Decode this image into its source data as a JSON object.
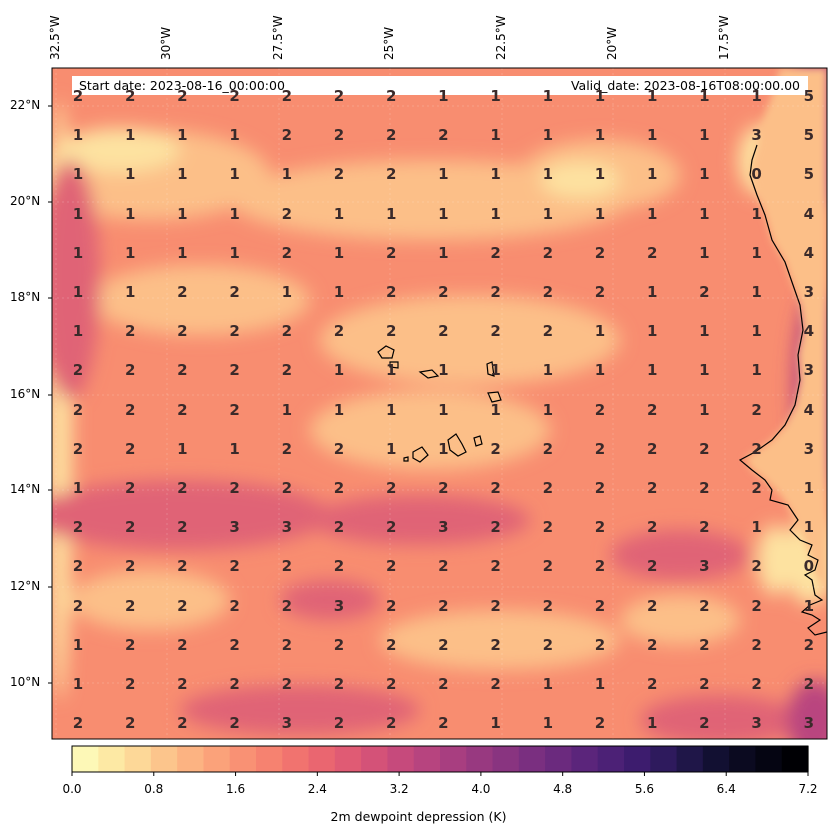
{
  "header": {
    "start_date": "Start date: 2023-08-16_00:00:00",
    "valid_date": "Valid_date: 2023-08-16T08:00:00.00"
  },
  "axes": {
    "lon_labels": [
      "32.5°W",
      "30°W",
      "27.5°W",
      "25°W",
      "22.5°W",
      "20°W",
      "17.5°W"
    ],
    "lat_labels": [
      "22°N",
      "20°N",
      "18°N",
      "16°N",
      "14°N",
      "12°N",
      "10°N"
    ]
  },
  "grid_values": [
    [
      "2",
      "2",
      "2",
      "2",
      "2",
      "2",
      "2",
      "1",
      "1",
      "1",
      "1",
      "1",
      "1",
      "1",
      "5"
    ],
    [
      "1",
      "1",
      "1",
      "1",
      "2",
      "2",
      "2",
      "2",
      "1",
      "1",
      "1",
      "1",
      "1",
      "3",
      "5"
    ],
    [
      "1",
      "1",
      "1",
      "1",
      "1",
      "2",
      "2",
      "1",
      "1",
      "1",
      "1",
      "1",
      "1",
      "0",
      "5"
    ],
    [
      "1",
      "1",
      "1",
      "1",
      "2",
      "1",
      "1",
      "1",
      "1",
      "1",
      "1",
      "1",
      "1",
      "1",
      "4"
    ],
    [
      "1",
      "1",
      "1",
      "1",
      "2",
      "1",
      "2",
      "1",
      "2",
      "2",
      "2",
      "2",
      "1",
      "1",
      "4"
    ],
    [
      "1",
      "1",
      "2",
      "2",
      "1",
      "1",
      "2",
      "2",
      "2",
      "2",
      "2",
      "1",
      "2",
      "1",
      "3"
    ],
    [
      "1",
      "2",
      "2",
      "2",
      "2",
      "2",
      "2",
      "2",
      "2",
      "2",
      "1",
      "1",
      "1",
      "1",
      "4"
    ],
    [
      "2",
      "2",
      "2",
      "2",
      "2",
      "1",
      "1",
      "1",
      "1",
      "1",
      "1",
      "1",
      "1",
      "1",
      "3"
    ],
    [
      "2",
      "2",
      "2",
      "2",
      "1",
      "1",
      "1",
      "1",
      "1",
      "1",
      "2",
      "2",
      "1",
      "2",
      "4"
    ],
    [
      "2",
      "2",
      "1",
      "1",
      "2",
      "2",
      "1",
      "1",
      "2",
      "2",
      "2",
      "2",
      "2",
      "2",
      "3"
    ],
    [
      "1",
      "2",
      "2",
      "2",
      "2",
      "2",
      "2",
      "2",
      "2",
      "2",
      "2",
      "2",
      "2",
      "2",
      "1"
    ],
    [
      "2",
      "2",
      "2",
      "3",
      "3",
      "2",
      "2",
      "3",
      "2",
      "2",
      "2",
      "2",
      "2",
      "1",
      "1"
    ],
    [
      "2",
      "2",
      "2",
      "2",
      "2",
      "2",
      "2",
      "2",
      "2",
      "2",
      "2",
      "2",
      "3",
      "2",
      "0"
    ],
    [
      "2",
      "2",
      "2",
      "2",
      "2",
      "3",
      "2",
      "2",
      "2",
      "2",
      "2",
      "2",
      "2",
      "2",
      "1"
    ],
    [
      "1",
      "2",
      "2",
      "2",
      "2",
      "2",
      "2",
      "2",
      "2",
      "2",
      "2",
      "2",
      "2",
      "2",
      "2"
    ],
    [
      "1",
      "2",
      "2",
      "2",
      "2",
      "2",
      "2",
      "2",
      "2",
      "1",
      "1",
      "2",
      "2",
      "2",
      "2"
    ],
    [
      "2",
      "2",
      "2",
      "2",
      "3",
      "2",
      "2",
      "2",
      "1",
      "1",
      "2",
      "1",
      "2",
      "3",
      "3"
    ]
  ],
  "colorbar": {
    "tick_labels": [
      "0.0",
      "0.8",
      "1.6",
      "2.4",
      "3.2",
      "4.0",
      "4.8",
      "5.6",
      "6.4",
      "7.2"
    ],
    "title": "2m dewpoint depression (K)",
    "min": 0.0,
    "max": 7.2,
    "colors": [
      "#fdf8b7",
      "#fde9a4",
      "#fdd898",
      "#fcc58c",
      "#fcb382",
      "#fba27a",
      "#f99174",
      "#f68270",
      "#f1736f",
      "#ea6670",
      "#e05b74",
      "#d45278",
      "#c64a7c",
      "#b7447f",
      "#a83e80",
      "#983980",
      "#893480",
      "#7a2f80",
      "#6b2a7e",
      "#5b257b",
      "#4c2176",
      "#3d1c6e",
      "#2e1a5d",
      "#1f1648",
      "#121032",
      "#0b0a20",
      "#050512",
      "#000004"
    ]
  },
  "map_colors": {
    "base": "#f88d70",
    "light": "#fcbf88",
    "pale": "#fde2a0",
    "dark": "#e06476",
    "deep": "#b9457f",
    "coast": "#000000"
  }
}
